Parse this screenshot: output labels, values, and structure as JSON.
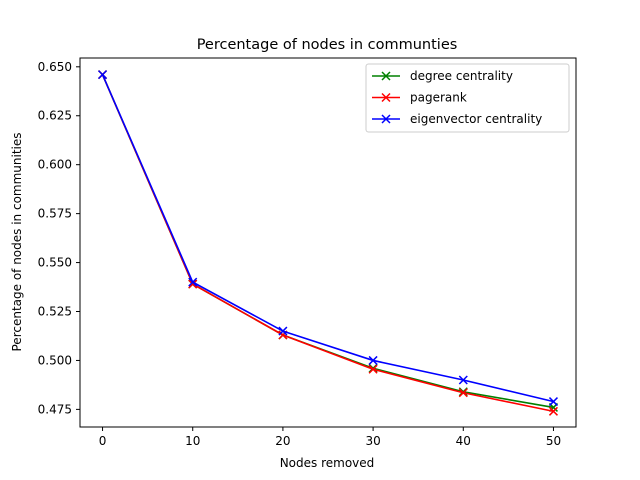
{
  "chart_data": {
    "type": "line",
    "title": "Percentage of nodes in communties",
    "xlabel": "Nodes removed",
    "ylabel": "Percentage of nodes in communities",
    "x": [
      0,
      10,
      20,
      30,
      40,
      50
    ],
    "xlim": [
      -2.5,
      52.5
    ],
    "ylim": [
      0.466,
      0.6545
    ],
    "xticks": [
      "0",
      "10",
      "20",
      "30",
      "40",
      "50"
    ],
    "yticks": [
      "0.475",
      "0.500",
      "0.525",
      "0.550",
      "0.575",
      "0.600",
      "0.625",
      "0.650"
    ],
    "grid": false,
    "legend_position": "top-right",
    "series": [
      {
        "name": "degree centrality",
        "color": "#008000",
        "marker": "x",
        "values": [
          0.646,
          0.539,
          0.513,
          0.496,
          0.484,
          0.476
        ]
      },
      {
        "name": "pagerank",
        "color": "#ff0000",
        "marker": "x",
        "values": [
          0.646,
          0.539,
          0.513,
          0.4955,
          0.4835,
          0.474
        ]
      },
      {
        "name": "eigenvector centrality",
        "color": "#0000ff",
        "marker": "x",
        "values": [
          0.646,
          0.54,
          0.515,
          0.5,
          0.49,
          0.479
        ]
      }
    ]
  }
}
